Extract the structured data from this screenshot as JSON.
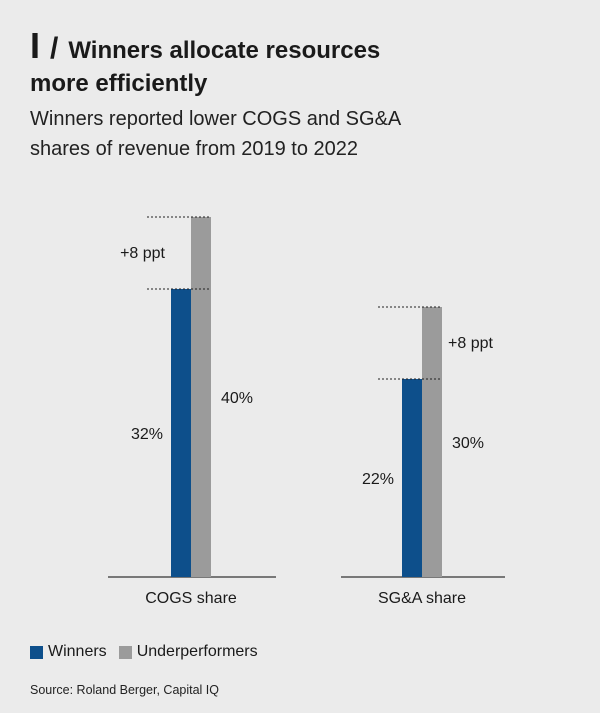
{
  "header": {
    "mark": "I",
    "slash": "/",
    "title_line1": "Winners allocate resources",
    "title_line2": "more efficiently",
    "subtitle_line1": "Winners reported lower COGS and SG&A",
    "subtitle_line2": "shares of revenue from 2019 to 2022"
  },
  "chart_data": {
    "type": "bar",
    "categories": [
      "COGS share",
      "SG&A share"
    ],
    "series": [
      {
        "name": "Winners",
        "values": [
          32,
          22
        ],
        "labels": [
          "32%",
          "22%"
        ]
      },
      {
        "name": "Underperformers",
        "values": [
          40,
          30
        ],
        "labels": [
          "40%",
          "30%"
        ]
      }
    ],
    "annotations": [
      "+8 ppt",
      "+8 ppt"
    ],
    "ylim": [
      0,
      40
    ],
    "grid": false,
    "legend": "bottom-left"
  },
  "colors": {
    "winners": "#0d4f8b",
    "underperformers": "#9b9b9b",
    "baseline": "#333333"
  },
  "legend": {
    "winners": "Winners",
    "underperformers": "Underperformers"
  },
  "source": "Source: Roland Berger, Capital IQ"
}
